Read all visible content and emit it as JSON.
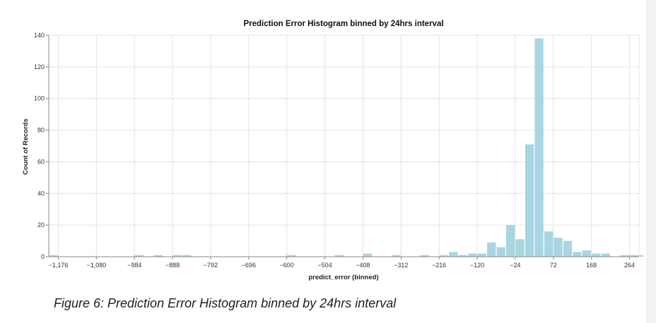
{
  "chart_data": {
    "type": "bar",
    "title": "Prediction Error Histogram binned by 24hrs interval",
    "xlabel": "predict_error (binned)",
    "ylabel": "Count of Records",
    "bin_width": 24,
    "xlim": [
      -1200,
      288
    ],
    "ylim": [
      0,
      140
    ],
    "yticks": [
      0,
      20,
      40,
      60,
      80,
      100,
      120,
      140
    ],
    "xticks": [
      -1176,
      -1080,
      -984,
      -888,
      -792,
      -696,
      -600,
      -504,
      -408,
      -312,
      -216,
      -120,
      -24,
      72,
      168,
      264
    ],
    "xtick_labels": [
      "−1,176",
      "−1,080",
      "−984",
      "−888",
      "−792",
      "−696",
      "−600",
      "−504",
      "−408",
      "−312",
      "−216",
      "−120",
      "−24",
      "72",
      "168",
      "264"
    ],
    "bins": [
      {
        "start": -1200,
        "count": 1
      },
      {
        "start": -984,
        "count": 1
      },
      {
        "start": -936,
        "count": 1
      },
      {
        "start": -888,
        "count": 1
      },
      {
        "start": -864,
        "count": 1
      },
      {
        "start": -600,
        "count": 1
      },
      {
        "start": -480,
        "count": 1
      },
      {
        "start": -408,
        "count": 2
      },
      {
        "start": -336,
        "count": 1
      },
      {
        "start": -264,
        "count": 1
      },
      {
        "start": -216,
        "count": 1
      },
      {
        "start": -192,
        "count": 3
      },
      {
        "start": -168,
        "count": 1
      },
      {
        "start": -144,
        "count": 2
      },
      {
        "start": -120,
        "count": 2
      },
      {
        "start": -96,
        "count": 9
      },
      {
        "start": -72,
        "count": 6
      },
      {
        "start": -48,
        "count": 20
      },
      {
        "start": -24,
        "count": 11
      },
      {
        "start": 0,
        "count": 71
      },
      {
        "start": 24,
        "count": 138
      },
      {
        "start": 48,
        "count": 16
      },
      {
        "start": 72,
        "count": 12
      },
      {
        "start": 96,
        "count": 10
      },
      {
        "start": 120,
        "count": 3
      },
      {
        "start": 144,
        "count": 4
      },
      {
        "start": 168,
        "count": 2
      },
      {
        "start": 192,
        "count": 2
      },
      {
        "start": 240,
        "count": 1
      },
      {
        "start": 264,
        "count": 1
      },
      {
        "start": 288,
        "count": 1
      }
    ],
    "bar_color": "#a8d6e2",
    "grid": true
  },
  "caption": "Figure 6: Prediction Error Histogram binned by 24hrs interval",
  "colors": {
    "grid": "#e3e3e3",
    "axis": "#888888"
  }
}
